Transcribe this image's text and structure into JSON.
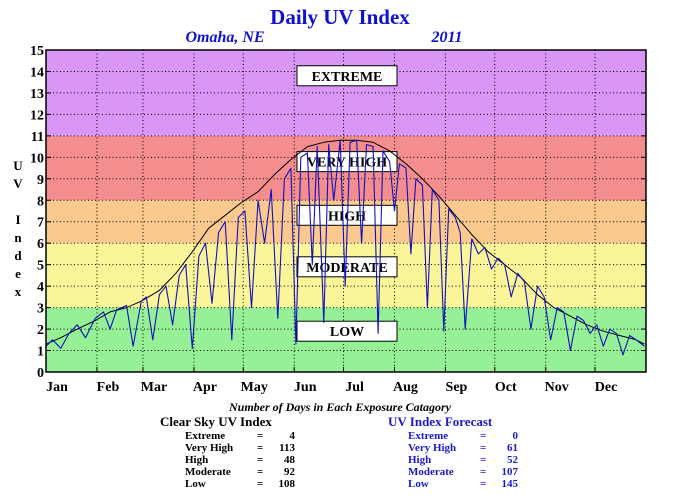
{
  "title": "Daily UV Index",
  "location": "Omaha, NE",
  "year": "2011",
  "ylabel": "U V   I n d e x",
  "days_caption": "Number of Days in Each Exposure Catagory",
  "colors": {
    "extreme": "#d996f6",
    "very_high": "#f48d8d",
    "high": "#fbc98d",
    "moderate": "#fbf59a",
    "low": "#96f196",
    "clear_sky_line": "#000000",
    "forecast_line": "#1010c0",
    "title": "#1010d0"
  },
  "clear_sky_stats": {
    "header": "Clear Sky UV Index",
    "rows": [
      {
        "label": "Extreme",
        "eq": "=",
        "value": "4"
      },
      {
        "label": "Very High",
        "eq": "=",
        "value": "113"
      },
      {
        "label": "High",
        "eq": "=",
        "value": "48"
      },
      {
        "label": "Moderate",
        "eq": "=",
        "value": "92"
      },
      {
        "label": "Low",
        "eq": "=",
        "value": "108"
      }
    ]
  },
  "forecast_stats": {
    "header": "UV Index Forecast",
    "rows": [
      {
        "label": "Extreme",
        "eq": "=",
        "value": "0"
      },
      {
        "label": "Very High",
        "eq": "=",
        "value": "61"
      },
      {
        "label": "High",
        "eq": "=",
        "value": "52"
      },
      {
        "label": "Moderate",
        "eq": "=",
        "value": "107"
      },
      {
        "label": "Low",
        "eq": "=",
        "value": "145"
      }
    ]
  },
  "chart_data": {
    "type": "line",
    "title": "Daily UV Index",
    "ylabel": "UV Index",
    "ylim": [
      0,
      15
    ],
    "yticks": [
      0,
      1,
      2,
      3,
      4,
      5,
      6,
      7,
      8,
      9,
      10,
      11,
      12,
      13,
      14,
      15
    ],
    "xlim": [
      1,
      366
    ],
    "x_tick_labels": [
      "Jan",
      "Feb",
      "Mar",
      "Apr",
      "May",
      "Jun",
      "Jul",
      "Aug",
      "Sep",
      "Oct",
      "Nov",
      "Dec"
    ],
    "x_tick_days": [
      1,
      32,
      60,
      91,
      121,
      152,
      182,
      213,
      244,
      274,
      305,
      335
    ],
    "grid": true,
    "bands": [
      {
        "label": "LOW",
        "from": 0,
        "to": 3,
        "label_y": 1.9
      },
      {
        "label": "MODERATE",
        "from": 3,
        "to": 6,
        "label_y": 4.9
      },
      {
        "label": "HIGH",
        "from": 6,
        "to": 8,
        "label_y": 7.3
      },
      {
        "label": "VERY HIGH",
        "from": 8,
        "to": 11,
        "label_y": 9.8
      },
      {
        "label": "EXTREME",
        "from": 11,
        "to": 15,
        "label_y": 13.8
      }
    ],
    "series": [
      {
        "name": "Clear Sky UV Index",
        "x": [
          1,
          10,
          20,
          31,
          40,
          50,
          59,
          70,
          80,
          90,
          100,
          110,
          120,
          130,
          140,
          150,
          160,
          170,
          180,
          190,
          200,
          210,
          220,
          230,
          240,
          250,
          260,
          270,
          280,
          290,
          300,
          310,
          320,
          330,
          340,
          350,
          360,
          365
        ],
        "values": [
          1.3,
          1.6,
          2.0,
          2.4,
          2.8,
          3.0,
          3.3,
          3.8,
          4.6,
          5.6,
          6.7,
          7.3,
          7.9,
          8.4,
          9.2,
          9.9,
          10.5,
          10.7,
          10.8,
          10.8,
          10.7,
          10.3,
          9.7,
          9.0,
          8.2,
          7.3,
          6.4,
          5.6,
          5.0,
          4.4,
          3.6,
          3.0,
          2.6,
          2.2,
          1.9,
          1.7,
          1.5,
          1.3
        ]
      },
      {
        "name": "UV Index Forecast",
        "x": [
          1,
          5,
          10,
          15,
          20,
          25,
          31,
          36,
          40,
          44,
          50,
          54,
          59,
          62,
          66,
          70,
          74,
          78,
          82,
          86,
          90,
          94,
          98,
          102,
          106,
          110,
          114,
          118,
          122,
          126,
          130,
          134,
          138,
          142,
          146,
          150,
          153,
          156,
          160,
          163,
          166,
          170,
          173,
          176,
          180,
          183,
          186,
          190,
          193,
          196,
          200,
          203,
          206,
          210,
          213,
          216,
          220,
          223,
          226,
          230,
          233,
          236,
          240,
          243,
          246,
          250,
          253,
          256,
          260,
          264,
          268,
          272,
          276,
          280,
          284,
          288,
          292,
          296,
          300,
          304,
          308,
          312,
          316,
          320,
          324,
          328,
          332,
          336,
          340,
          344,
          348,
          352,
          356,
          360,
          365
        ],
        "values": [
          1.2,
          1.5,
          1.1,
          1.8,
          2.2,
          1.6,
          2.5,
          2.8,
          2.0,
          2.9,
          3.1,
          1.2,
          3.3,
          3.5,
          1.5,
          3.6,
          4.0,
          2.2,
          4.5,
          5.0,
          1.1,
          5.4,
          6.0,
          3.2,
          6.5,
          7.0,
          1.5,
          7.2,
          7.5,
          3.0,
          8.0,
          6.0,
          8.5,
          2.5,
          9.0,
          9.5,
          1.3,
          10.0,
          10.2,
          5.0,
          10.5,
          2.3,
          10.6,
          8.0,
          10.8,
          4.0,
          10.7,
          10.8,
          6.0,
          10.6,
          10.5,
          1.8,
          10.3,
          9.8,
          7.5,
          9.7,
          9.5,
          5.5,
          9.0,
          8.7,
          3.0,
          8.5,
          8.0,
          1.9,
          7.6,
          7.2,
          6.5,
          2.0,
          6.2,
          5.5,
          5.8,
          4.8,
          5.3,
          5.0,
          3.5,
          4.6,
          4.2,
          2.0,
          4.0,
          3.5,
          1.5,
          3.0,
          2.8,
          1.0,
          2.6,
          2.4,
          1.8,
          2.2,
          1.2,
          2.0,
          1.8,
          0.8,
          1.7,
          1.5,
          1.2
        ]
      }
    ]
  }
}
